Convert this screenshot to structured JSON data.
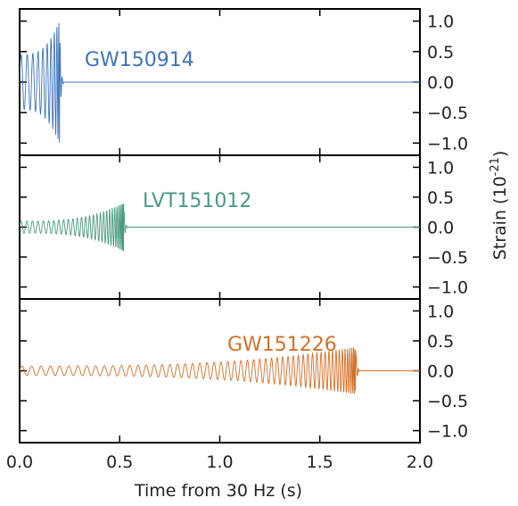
{
  "chart_data": {
    "type": "line",
    "xlabel": "Time from 30 Hz (s)",
    "ylabel": "Strain (10",
    "ylabel_exponent": "-21",
    "ylabel_close": ")",
    "xlim": [
      0.0,
      2.0
    ],
    "x_ticks": [
      "0.0",
      "0.5",
      "1.0",
      "1.5",
      "2.0"
    ],
    "ylim": [
      -1.2,
      1.2
    ],
    "y_ticks": [
      "1.0",
      "0.5",
      "0.0",
      "−0.5",
      "−1.0"
    ],
    "series": [
      {
        "name": "GW150914",
        "color": "#3f74b8",
        "signal_start": 0.0,
        "merger_time": 0.2,
        "end": 2.0,
        "peak_amplitude": 1.0,
        "initial_amplitude": 0.45,
        "cycles": 10
      },
      {
        "name": "LVT151012",
        "color": "#4a9a80",
        "signal_start": 0.0,
        "merger_time": 0.52,
        "end": 2.0,
        "peak_amplitude": 0.4,
        "initial_amplitude": 0.1,
        "cycles": 28
      },
      {
        "name": "GW151226",
        "color": "#d46f29",
        "signal_start": 0.0,
        "merger_time": 1.68,
        "end": 2.0,
        "peak_amplitude": 0.4,
        "initial_amplitude": 0.08,
        "cycles": 55
      }
    ]
  }
}
